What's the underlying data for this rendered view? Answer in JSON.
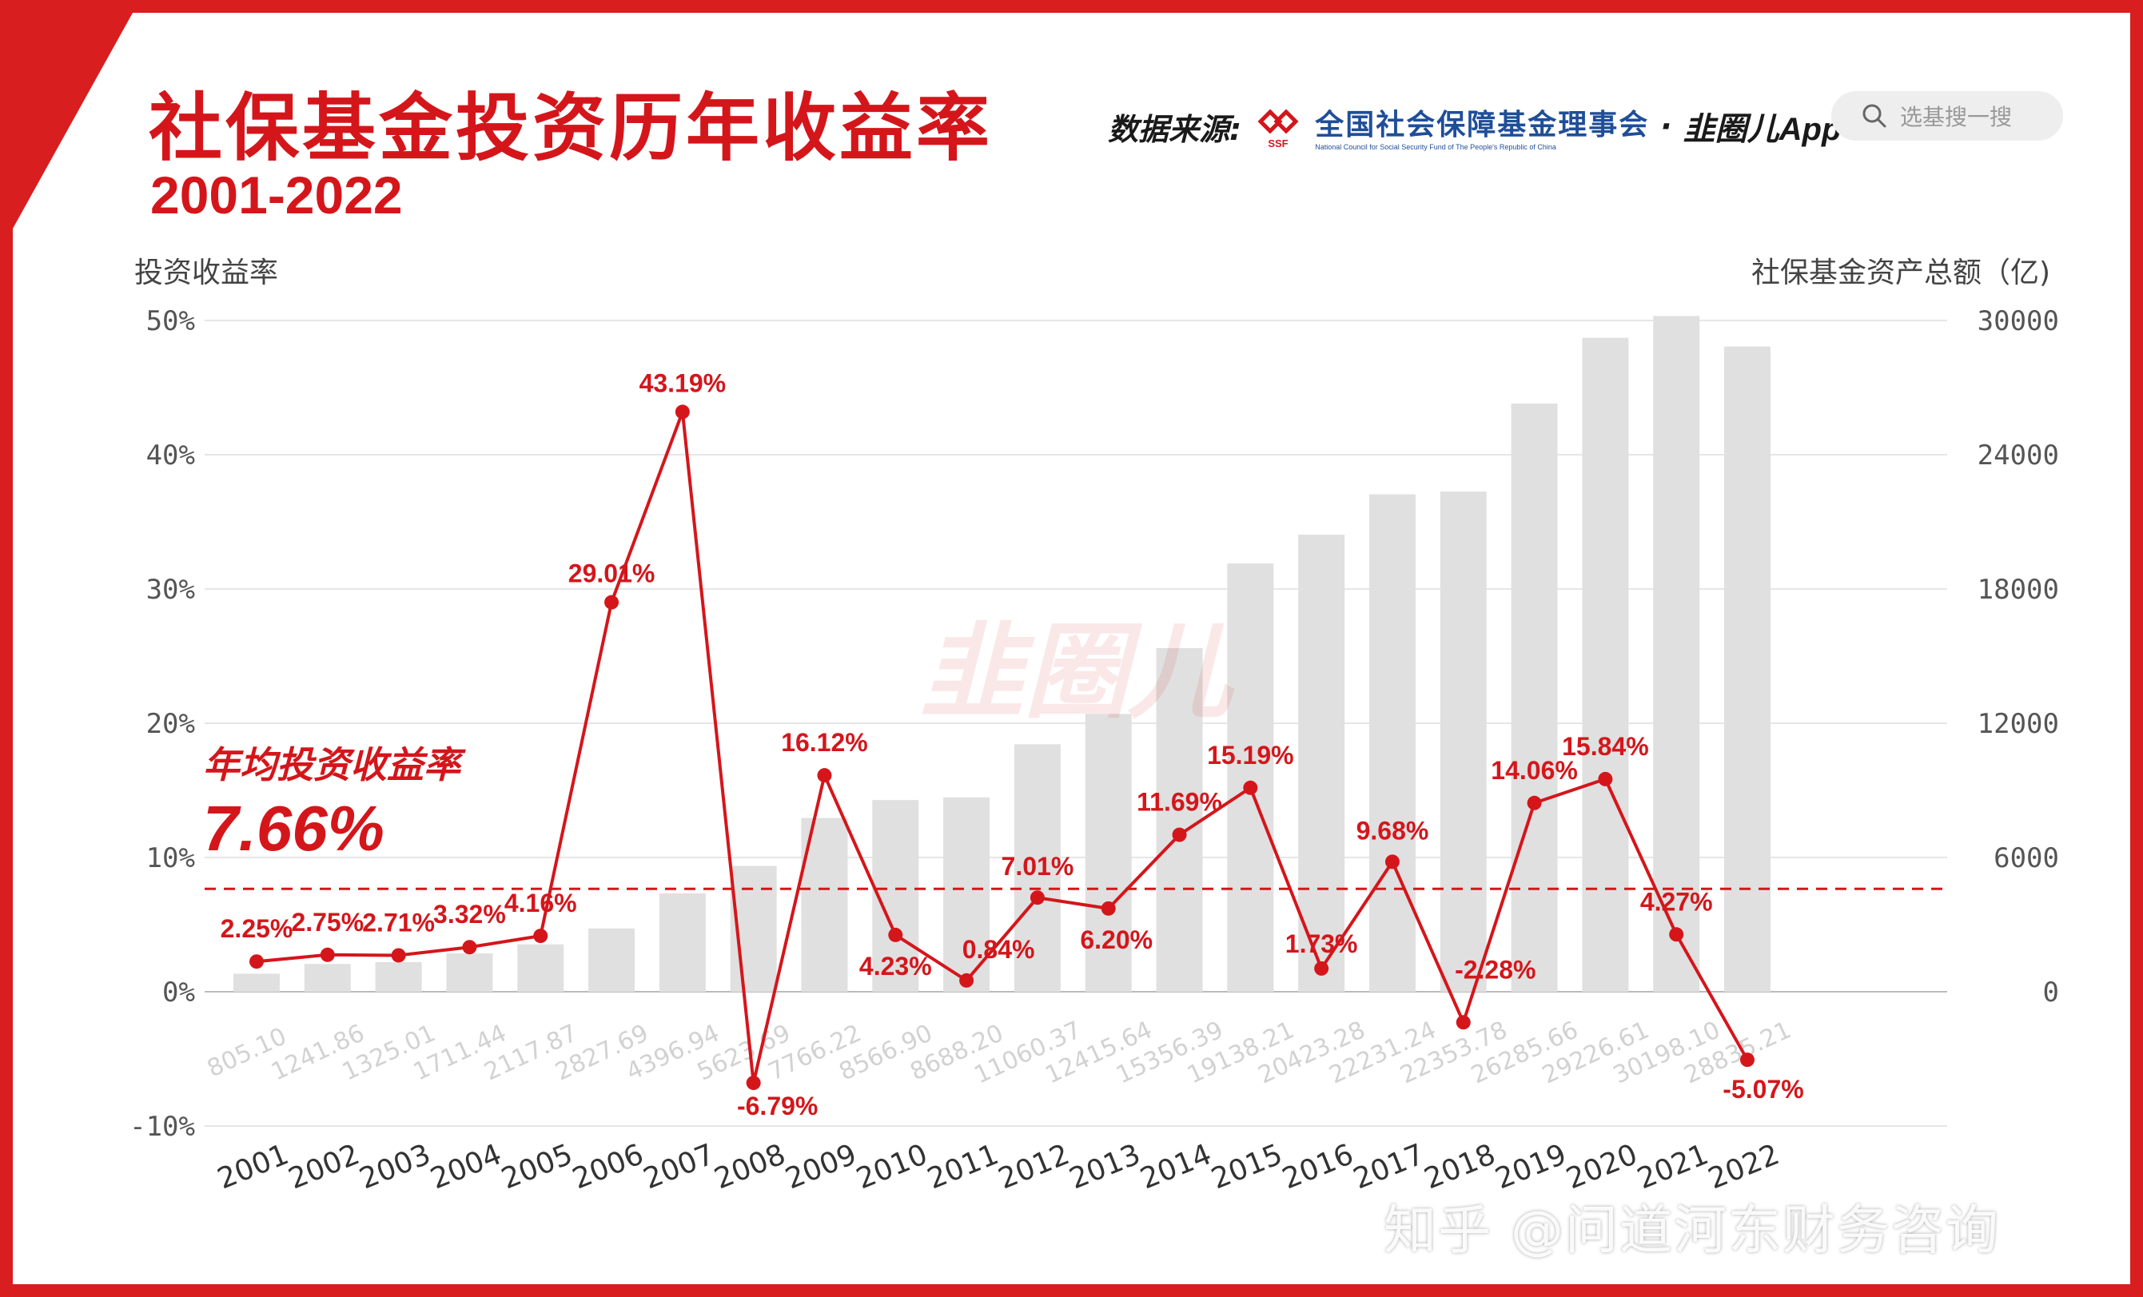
{
  "title": "社保基金投资历年收益率",
  "subtitle": "2001-2022",
  "source": {
    "label": "数据来源:",
    "org_name": "全国社会保障基金理事会",
    "org_english": "National Council for Social Security Fund of The People's Republic of China",
    "logo_text": "SSF",
    "separator": "·",
    "app_name": "韭圈儿App"
  },
  "search": {
    "placeholder": "选基搜一搜",
    "icon": "search-icon"
  },
  "watermark": {
    "center": "韭圈儿",
    "bottom": "知乎 @问道河东财务咨询"
  },
  "average": {
    "label": "年均投资收益率",
    "value": "7.66%"
  },
  "colors": {
    "accent": "#d4161b",
    "bar": "#e0e0e0",
    "frame": "#d81e1e"
  },
  "chart_data": {
    "type": "bar+line",
    "categories": [
      "2001",
      "2002",
      "2003",
      "2004",
      "2005",
      "2006",
      "2007",
      "2008",
      "2009",
      "2010",
      "2011",
      "2012",
      "2013",
      "2014",
      "2015",
      "2016",
      "2017",
      "2018",
      "2019",
      "2020",
      "2021",
      "2022"
    ],
    "y_left_label": "投资收益率",
    "y_left_ticks": [
      "50%",
      "40%",
      "30%",
      "20%",
      "10%",
      "0%",
      "-10%"
    ],
    "y_left_range": [
      -10,
      50
    ],
    "y_right_label": "社保基金资产总额（亿)",
    "y_right_ticks": [
      "30000",
      "24000",
      "18000",
      "12000",
      "6000",
      "0"
    ],
    "y_right_range": [
      -6000,
      30000
    ],
    "average_line": 7.66,
    "series": [
      {
        "name": "社保基金资产总额",
        "kind": "bar",
        "axis": "right",
        "values": [
          805.1,
          1241.86,
          1325.01,
          1711.44,
          2117.87,
          2827.69,
          4396.94,
          5623.69,
          7766.22,
          8566.9,
          8688.2,
          11060.37,
          12415.64,
          15356.39,
          19138.21,
          20423.28,
          22231.24,
          22353.78,
          26285.66,
          29226.61,
          30198.1,
          28835.21
        ],
        "labels": [
          "805.10",
          "1241.86",
          "1325.01",
          "1711.44",
          "2117.87",
          "2827.69",
          "4396.94",
          "5623.69",
          "7766.22",
          "8566.90",
          "8688.20",
          "11060.37",
          "12415.64",
          "15356.39",
          "19138.21",
          "20423.28",
          "22231.24",
          "22353.78",
          "26285.66",
          "29226.61",
          "30198.10",
          "28835.21"
        ]
      },
      {
        "name": "投资收益率",
        "kind": "line",
        "axis": "left",
        "values": [
          2.25,
          2.75,
          2.71,
          3.32,
          4.16,
          29.01,
          43.19,
          -6.79,
          16.12,
          4.23,
          0.84,
          7.01,
          6.2,
          11.69,
          15.19,
          1.73,
          9.68,
          -2.28,
          14.06,
          15.84,
          4.27,
          -5.07
        ],
        "labels": [
          "2.25%",
          "2.75%",
          "2.71%",
          "3.32%",
          "4.16%",
          "29.01%",
          "43.19%",
          "-6.79%",
          "16.12%",
          "4.23%",
          "0.84%",
          "7.01%",
          "6.20%",
          "11.69%",
          "15.19%",
          "1.73%",
          "9.68%",
          "-2.28%",
          "14.06%",
          "15.84%",
          "4.27%",
          "-5.07%"
        ]
      }
    ]
  }
}
